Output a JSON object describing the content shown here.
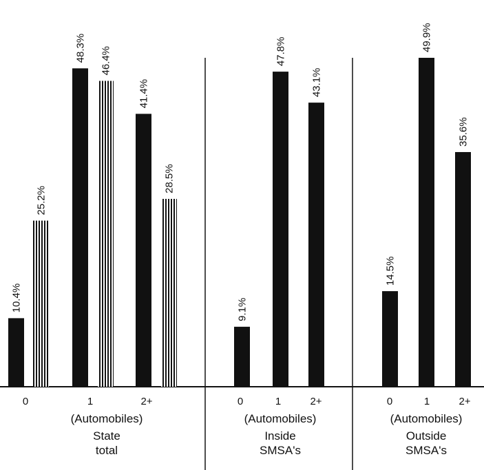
{
  "chart_data": {
    "type": "bar",
    "colors": {
      "solid_bar": "#111111",
      "hatched_bar": "#111111",
      "axis": "#111111"
    },
    "ylim": [
      0,
      55
    ],
    "panels": [
      {
        "name": "State total",
        "name_lines": [
          "State",
          "total"
        ],
        "xlabel": "(Automobiles)",
        "categories": [
          "0",
          "1",
          "2+"
        ],
        "series": [
          {
            "style": "solid",
            "values": [
              10.4,
              48.3,
              41.4
            ],
            "labels": [
              "10.4%",
              "48.3%",
              "41.4%"
            ]
          },
          {
            "style": "hatched",
            "values": [
              25.2,
              46.4,
              28.5
            ],
            "labels": [
              "25.2%",
              "46.4%",
              "28.5%"
            ]
          }
        ]
      },
      {
        "name": "Inside SMSA's",
        "name_lines": [
          "Inside",
          "SMSA's"
        ],
        "xlabel": "(Automobiles)",
        "categories": [
          "0",
          "1",
          "2+"
        ],
        "series": [
          {
            "style": "solid",
            "values": [
              9.1,
              47.8,
              43.1
            ],
            "labels": [
              "9.1%",
              "47.8%",
              "43.1%"
            ]
          }
        ]
      },
      {
        "name": "Outside SMSA's",
        "name_lines": [
          "Outside",
          "SMSA's"
        ],
        "xlabel": "(Automobiles)",
        "categories": [
          "0",
          "1",
          "2+"
        ],
        "series": [
          {
            "style": "solid",
            "values": [
              14.5,
              49.9,
              35.6
            ],
            "labels": [
              "14.5%",
              "49.9%",
              "35.6%"
            ]
          }
        ]
      }
    ]
  }
}
